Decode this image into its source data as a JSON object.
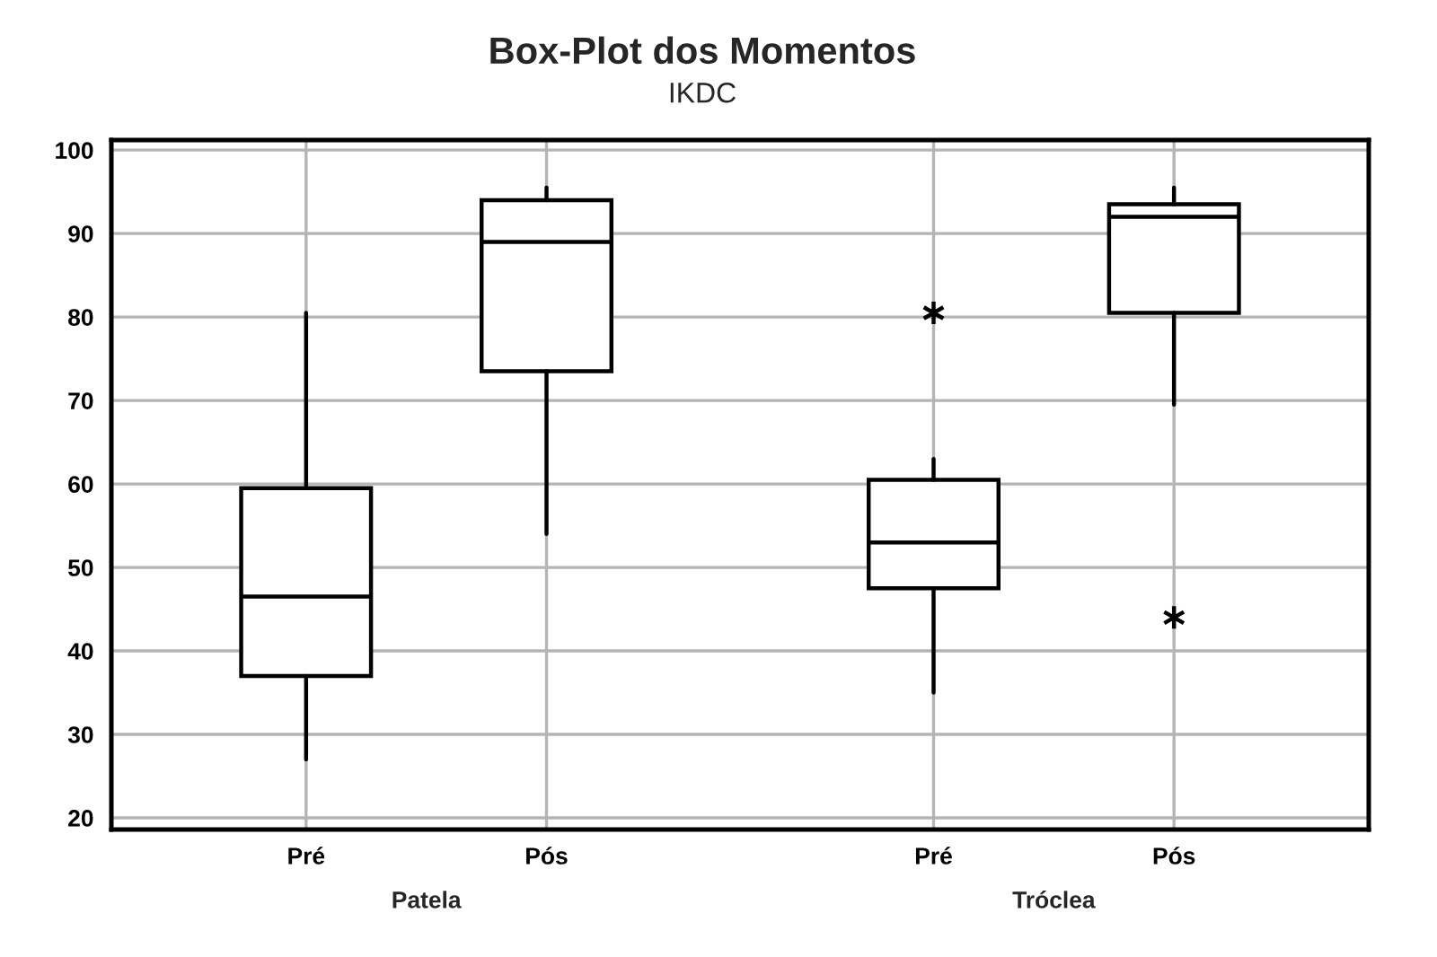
{
  "chart_data": {
    "type": "box",
    "title": "Box-Plot dos Momentos",
    "subtitle": "IKDC",
    "categories": [
      "Pré",
      "Pós",
      "Pré",
      "Pós"
    ],
    "annotations": [
      "Patela",
      "Tróclea"
    ],
    "boxes": [
      {
        "low": 27,
        "q1": 37,
        "median": 46.5,
        "q3": 59.5,
        "high": 80.5
      },
      {
        "low": 54,
        "q1": 73.5,
        "median": 89,
        "q3": 94,
        "high": 95.5
      },
      {
        "low": 35,
        "q1": 47.5,
        "median": 53,
        "q3": 60.5,
        "high": 63,
        "outliers": [
          80.5
        ]
      },
      {
        "low": 69.5,
        "q1": 80.5,
        "median": 92,
        "q3": 93.5,
        "high": 95.5,
        "outliers": [
          44
        ]
      }
    ],
    "ylim": [
      18.6,
      101.2
    ],
    "yticks": [
      20,
      30,
      40,
      50,
      60,
      70,
      80,
      90,
      100
    ],
    "grid": true,
    "marker": "star"
  }
}
